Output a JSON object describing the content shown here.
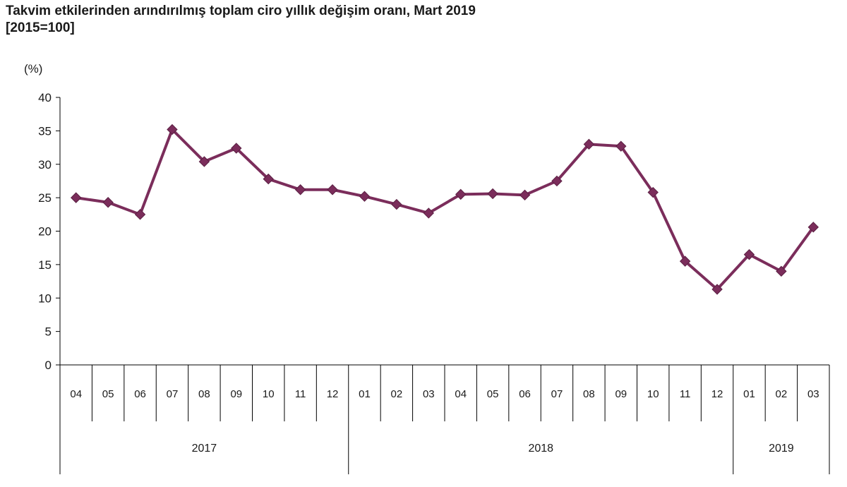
{
  "chart_data": {
    "type": "line",
    "title": "Takvim etkilerinden arındırılmış toplam ciro yıllık değişim oranı, Mart 2019",
    "subtitle": "[2015=100]",
    "ylabel": "(%)",
    "xlabel": "",
    "ylim": [
      0,
      40
    ],
    "yticks": [
      "0",
      "5",
      "10",
      "15",
      "20",
      "25",
      "30",
      "35",
      "40"
    ],
    "grid": false,
    "color": "#7b2d5b",
    "categories": [
      "04",
      "05",
      "06",
      "07",
      "08",
      "09",
      "10",
      "11",
      "12",
      "01",
      "02",
      "03",
      "04",
      "05",
      "06",
      "07",
      "08",
      "09",
      "10",
      "11",
      "12",
      "01",
      "02",
      "03"
    ],
    "years": [
      {
        "label": "2017",
        "count": 9
      },
      {
        "label": "2018",
        "count": 12
      },
      {
        "label": "2019",
        "count": 3
      }
    ],
    "series": [
      {
        "values": [
          25.0,
          24.3,
          22.5,
          35.2,
          30.4,
          32.4,
          27.8,
          26.2,
          26.2,
          25.2,
          24.0,
          22.7,
          25.5,
          25.6,
          25.4,
          27.5,
          33.0,
          32.7,
          25.8,
          15.5,
          11.3,
          16.5,
          14.0,
          20.6
        ]
      }
    ]
  }
}
